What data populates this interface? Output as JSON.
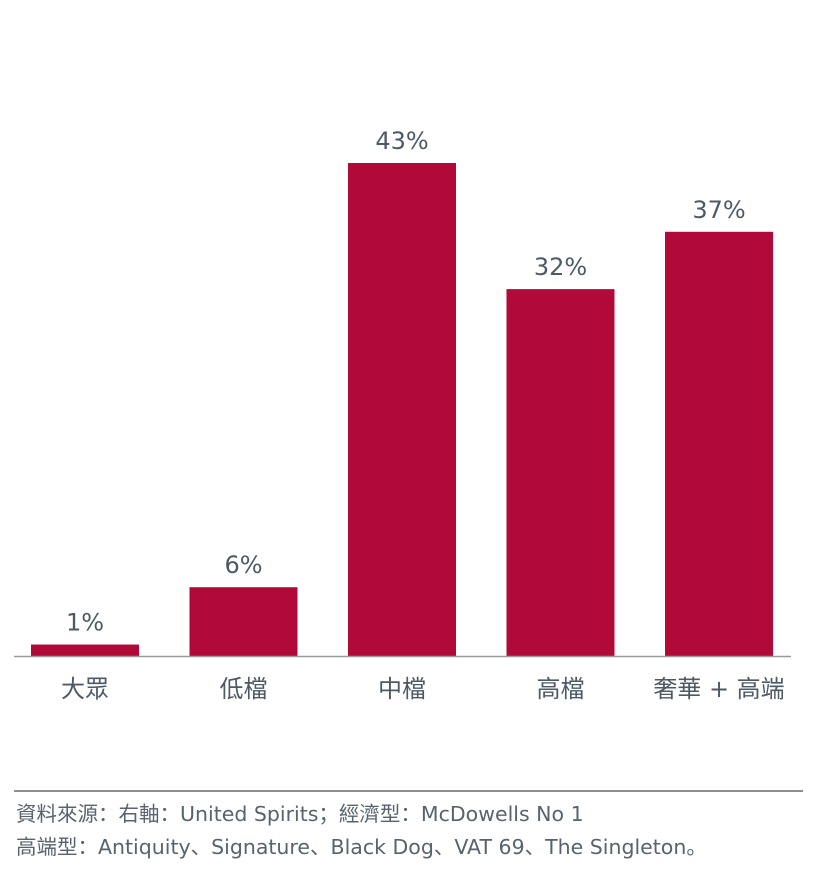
{
  "chart_data": {
    "type": "bar",
    "categories": [
      "大眾",
      "低檔",
      "中檔",
      "高檔",
      "奢華 + 高端"
    ],
    "values": [
      1,
      6,
      43,
      32,
      37
    ],
    "data_labels": [
      "1%",
      "6%",
      "43%",
      "32%",
      "37%"
    ],
    "title": "",
    "xlabel": "",
    "ylabel": "",
    "ylim": [
      0,
      43
    ],
    "grid": false,
    "legend": "none",
    "bar_color": "#b20a38"
  },
  "footnote": {
    "line1": "資料來源：右軸：United Spirits；經濟型：McDowells No 1",
    "line2": "高端型：Antiquity、Signature、Black Dog、VAT 69、The Singleton。"
  }
}
